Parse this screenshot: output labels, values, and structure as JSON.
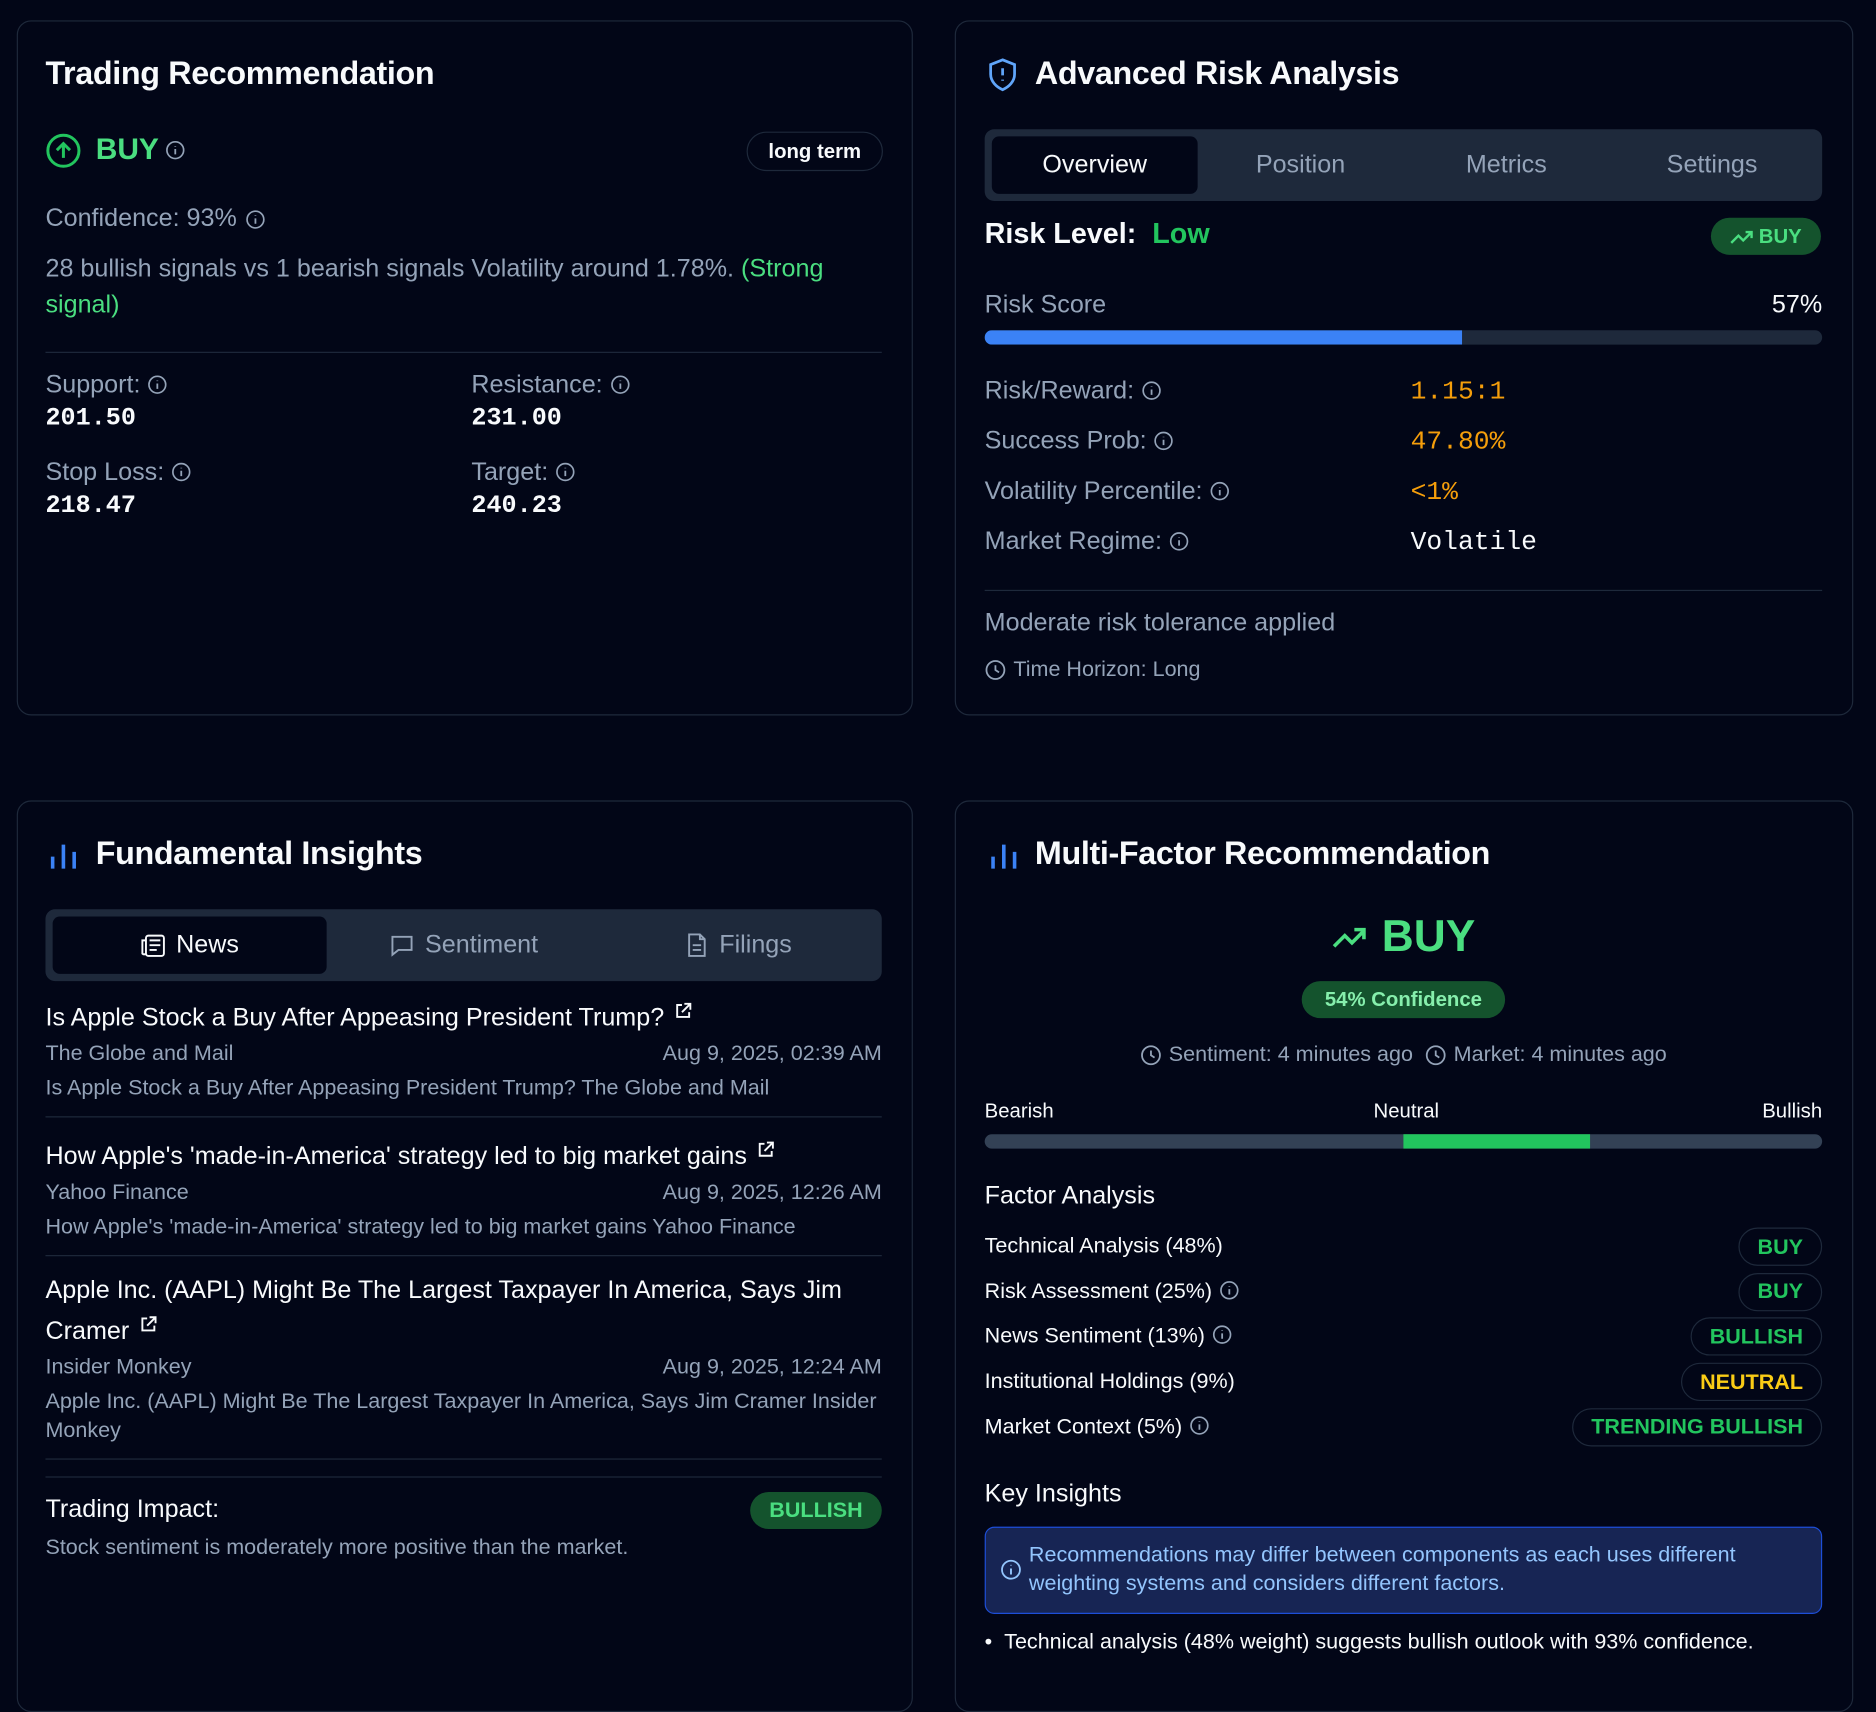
{
  "trading_recommendation": {
    "title": "Trading Recommendation",
    "action": "BUY",
    "horizon": "long term",
    "confidence": "Confidence: 93%",
    "summary": "28 bullish signals vs 1 bearish signals Volatility around 1.78%.",
    "signal": "(Strong signal)",
    "levels": [
      {
        "label": "Support:",
        "value": "201.50"
      },
      {
        "label": "Resistance:",
        "value": "231.00"
      },
      {
        "label": "Stop Loss:",
        "value": "218.47"
      },
      {
        "label": "Target:",
        "value": "240.23"
      }
    ]
  },
  "risk_analysis": {
    "title": "Advanced Risk Analysis",
    "tabs": [
      "Overview",
      "Position",
      "Metrics",
      "Settings"
    ],
    "risk_level_label": "Risk Level:",
    "risk_level": "Low",
    "badge": "BUY",
    "risk_score": {
      "label": "Risk Score",
      "value": 57,
      "value_label": "57%"
    },
    "metrics": [
      {
        "label": "Risk/Reward:",
        "value": "1.15:1",
        "color": "#f59e0b"
      },
      {
        "label": "Success Prob:",
        "value": "47.80%",
        "color": "#f59e0b"
      },
      {
        "label": "Volatility Percentile:",
        "value": "<1%",
        "color": "#f59e0b"
      },
      {
        "label": "Market Regime:",
        "value": "Volatile",
        "color": "#f8fafc"
      }
    ],
    "tolerance": "Moderate risk tolerance applied",
    "time_horizon": "Time Horizon: Long"
  },
  "fundamental_insights": {
    "title": "Fundamental Insights",
    "tabs": [
      "News",
      "Sentiment",
      "Filings"
    ],
    "news": [
      {
        "headline": "Is Apple Stock a Buy After Appeasing President Trump?",
        "source": "The Globe and Mail",
        "date": "Aug 9, 2025, 02:39 AM",
        "summary": "Is Apple Stock a Buy After Appeasing President Trump? The Globe and Mail"
      },
      {
        "headline": "How Apple's 'made-in-America' strategy led to big market gains",
        "source": "Yahoo Finance",
        "date": "Aug 9, 2025, 12:26 AM",
        "summary": "How Apple's 'made-in-America' strategy led to big market gains Yahoo Finance"
      },
      {
        "headline": "Apple Inc. (AAPL) Might Be The Largest Taxpayer In America, Says Jim Cramer",
        "source": "Insider Monkey",
        "date": "Aug 9, 2025, 12:24 AM",
        "summary": "Apple Inc. (AAPL) Might Be The Largest Taxpayer In America, Says Jim Cramer Insider Monkey"
      }
    ],
    "impact_label": "Trading Impact:",
    "impact": "BULLISH",
    "impact_text": "Stock sentiment is moderately more positive than the market."
  },
  "multi_factor": {
    "title": "Multi-Factor Recommendation",
    "action": "BUY",
    "confidence": "54% Confidence",
    "sentiment_time": "Sentiment: 4 minutes ago",
    "market_time": "Market: 4 minutes ago",
    "scale": [
      "Bearish",
      "Neutral",
      "Bullish"
    ],
    "factor_title": "Factor Analysis",
    "factors": [
      {
        "name": "Technical Analysis (48%)",
        "signal": "BUY",
        "info": false,
        "color": "#22c55e"
      },
      {
        "name": "Risk Assessment (25%)",
        "signal": "BUY",
        "info": true,
        "color": "#22c55e"
      },
      {
        "name": "News Sentiment (13%)",
        "signal": "BULLISH",
        "info": true,
        "color": "#22c55e"
      },
      {
        "name": "Institutional Holdings (9%)",
        "signal": "NEUTRAL",
        "info": false,
        "color": "#facc15"
      },
      {
        "name": "Market Context (5%)",
        "signal": "TRENDING BULLISH",
        "info": true,
        "color": "#22c55e"
      }
    ],
    "insights_title": "Key Insights",
    "notice": "Recommendations may differ between components as each uses different weighting systems and considers different factors.",
    "insights": [
      "Technical analysis (48% weight) suggests bullish outlook with 93% confidence."
    ]
  }
}
